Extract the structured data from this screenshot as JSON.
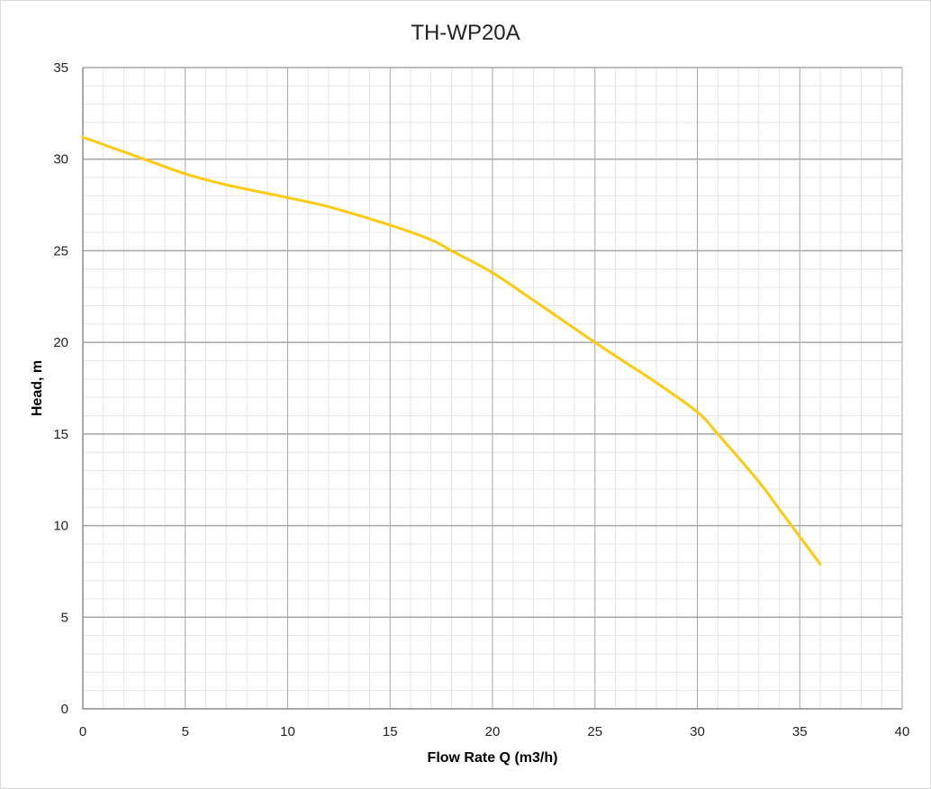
{
  "chart_data": {
    "type": "line",
    "title": "TH-WP20A",
    "xlabel": "Flow Rate Q (m3/h)",
    "ylabel": "Head, m",
    "xlim": [
      0,
      40
    ],
    "ylim": [
      0,
      35
    ],
    "x_ticks": [
      0,
      5,
      10,
      15,
      20,
      25,
      30,
      35,
      40
    ],
    "y_ticks": [
      0,
      5,
      10,
      15,
      20,
      25,
      30,
      35
    ],
    "grid": true,
    "minor_grid": true,
    "legend": "none",
    "colors": {
      "line": "#FFC90E",
      "major_grid": "#a6a6a6",
      "minor_grid": "#e6e6e6"
    },
    "series": [
      {
        "x": [
          0,
          3,
          5,
          7,
          10,
          12,
          15,
          17,
          18,
          20,
          22,
          25,
          28,
          30,
          31,
          33,
          34,
          35,
          36
        ],
        "y": [
          31.2,
          30.0,
          29.2,
          28.6,
          27.9,
          27.4,
          26.4,
          25.6,
          25.0,
          23.8,
          22.3,
          20.0,
          17.8,
          16.2,
          15.0,
          12.4,
          10.9,
          9.4,
          7.9
        ]
      }
    ]
  }
}
